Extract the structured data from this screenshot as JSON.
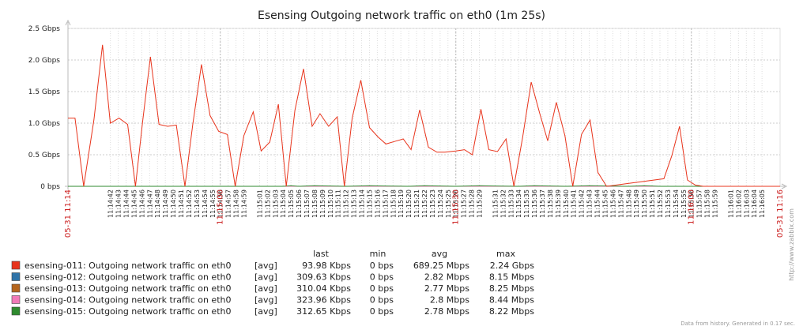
{
  "chart_data": {
    "type": "line",
    "title": "Esensing Outgoing network traffic on eth0 (1m 25s)",
    "ylim_gbps": [
      0,
      2.5
    ],
    "y_ticks": [
      "0 bps",
      "0.5 Gbps",
      "1.0 Gbps",
      "1.5 Gbps",
      "2.0 Gbps",
      "2.5 Gbps"
    ],
    "x_start_label": "05-31 11:14",
    "x_end_label": "05-31 11:16",
    "x_major": [
      {
        "index": 14,
        "label": "11:15:00"
      },
      {
        "index": 44,
        "label": "11:15:30"
      },
      {
        "index": 74,
        "label": "11:16:00"
      }
    ],
    "x_labels": [
      "11:14:42",
      "11:14:43",
      "11:14:44",
      "11:14:45",
      "11:14:46",
      "11:14:47",
      "11:14:48",
      "11:14:49",
      "11:14:50",
      "11:14:51",
      "11:14:52",
      "11:14:53",
      "11:14:54",
      "11:14:55",
      "11:14:56",
      "11:14:57",
      "11:14:58",
      "11:14:59",
      "11:15:01",
      "11:15:02",
      "11:15:03",
      "11:15:04",
      "11:15:05",
      "11:15:06",
      "11:15:07",
      "11:15:08",
      "11:15:09",
      "11:15:10",
      "11:15:11",
      "11:15:12",
      "11:15:13",
      "11:15:14",
      "11:15:15",
      "11:15:16",
      "11:15:17",
      "11:15:18",
      "11:15:19",
      "11:15:20",
      "11:15:21",
      "11:15:22",
      "11:15:23",
      "11:15:24",
      "11:15:25",
      "11:15:26",
      "11:15:27",
      "11:15:28",
      "11:15:29",
      "11:15:31",
      "11:15:32",
      "11:15:33",
      "11:15:34",
      "11:15:35",
      "11:15:36",
      "11:15:37",
      "11:15:38",
      "11:15:39",
      "11:15:40",
      "11:15:41",
      "11:15:42",
      "11:15:43",
      "11:15:44",
      "11:15:45",
      "11:15:46",
      "11:15:47",
      "11:15:48",
      "11:15:49",
      "11:15:50",
      "11:15:51",
      "11:15:52",
      "11:15:53",
      "11:15:54",
      "11:15:55",
      "11:15:56",
      "11:15:57",
      "11:15:58",
      "11:15:59",
      "11:16:01",
      "11:16:02",
      "11:16:03",
      "11:16:04",
      "11:16:05"
    ],
    "x_label_positions": [
      0,
      1,
      2,
      3,
      4,
      5,
      6,
      7,
      8,
      9,
      10,
      11,
      12,
      13,
      14,
      15,
      16,
      17,
      19,
      20,
      21,
      22,
      23,
      24,
      25,
      26,
      27,
      28,
      29,
      30,
      31,
      32,
      33,
      34,
      35,
      36,
      37,
      38,
      39,
      40,
      41,
      42,
      43,
      44,
      45,
      46,
      47,
      49,
      50,
      51,
      52,
      53,
      54,
      55,
      56,
      57,
      58,
      59,
      60,
      61,
      62,
      63,
      64,
      65,
      66,
      67,
      68,
      69,
      70,
      71,
      72,
      73,
      74,
      75,
      76,
      77,
      79,
      80,
      81,
      82,
      83
    ],
    "x_index_range": [
      -5.4,
      85.3
    ],
    "series": [
      {
        "name": "esensing-011: Outgoing network traffic on eth0",
        "color": "#e8341c",
        "points": [
          [
            -5.4,
            1.08
          ],
          [
            -4.5,
            1.08
          ],
          [
            -3.4,
            0.0
          ],
          [
            -2.1,
            1.05
          ],
          [
            -1.0,
            2.24
          ],
          [
            0.0,
            1.0
          ],
          [
            1.1,
            1.08
          ],
          [
            2.2,
            0.98
          ],
          [
            3.2,
            0.0
          ],
          [
            4.1,
            1.02
          ],
          [
            5.1,
            2.05
          ],
          [
            6.2,
            0.98
          ],
          [
            7.3,
            0.95
          ],
          [
            8.4,
            0.97
          ],
          [
            9.5,
            0.0
          ],
          [
            10.5,
            0.98
          ],
          [
            11.6,
            1.93
          ],
          [
            12.7,
            1.12
          ],
          [
            13.8,
            0.87
          ],
          [
            14.9,
            0.82
          ],
          [
            15.9,
            0.0
          ],
          [
            17.0,
            0.8
          ],
          [
            18.2,
            1.18
          ],
          [
            19.2,
            0.56
          ],
          [
            20.3,
            0.7
          ],
          [
            21.4,
            1.3
          ],
          [
            22.4,
            0.0
          ],
          [
            23.5,
            1.2
          ],
          [
            24.6,
            1.86
          ],
          [
            25.7,
            0.95
          ],
          [
            26.7,
            1.15
          ],
          [
            27.8,
            0.95
          ],
          [
            28.9,
            1.1
          ],
          [
            29.8,
            0.0
          ],
          [
            30.8,
            1.08
          ],
          [
            31.9,
            1.68
          ],
          [
            33.0,
            0.93
          ],
          [
            34.1,
            0.78
          ],
          [
            35.1,
            0.67
          ],
          [
            36.2,
            0.71
          ],
          [
            37.3,
            0.75
          ],
          [
            38.3,
            0.58
          ],
          [
            39.4,
            1.21
          ],
          [
            40.5,
            0.62
          ],
          [
            41.6,
            0.54
          ],
          [
            42.6,
            0.54
          ],
          [
            44.0,
            0.56
          ],
          [
            45.1,
            0.58
          ],
          [
            46.1,
            0.5
          ],
          [
            47.2,
            1.22
          ],
          [
            48.2,
            0.58
          ],
          [
            49.3,
            0.55
          ],
          [
            50.4,
            0.75
          ],
          [
            51.4,
            0.0
          ],
          [
            52.5,
            0.77
          ],
          [
            53.6,
            1.65
          ],
          [
            54.7,
            1.15
          ],
          [
            55.7,
            0.72
          ],
          [
            56.8,
            1.33
          ],
          [
            57.9,
            0.8
          ],
          [
            58.9,
            0.0
          ],
          [
            60.0,
            0.82
          ],
          [
            61.1,
            1.05
          ],
          [
            62.1,
            0.22
          ],
          [
            63.2,
            0.0
          ],
          [
            70.5,
            0.12
          ],
          [
            71.5,
            0.48
          ],
          [
            72.5,
            0.95
          ],
          [
            73.5,
            0.1
          ],
          [
            74.5,
            0.02
          ],
          [
            75.5,
            0.0
          ],
          [
            85.3,
            0.0
          ]
        ]
      },
      {
        "name": "esensing-012: Outgoing network traffic on eth0",
        "color": "#2f73a8",
        "points": [
          [
            -5.4,
            0.0
          ],
          [
            85.3,
            0.0
          ]
        ]
      },
      {
        "name": "esensing-013: Outgoing network traffic on eth0",
        "color": "#b5651d",
        "points": [
          [
            -5.4,
            0.0
          ],
          [
            85.3,
            0.0
          ]
        ]
      },
      {
        "name": "esensing-014: Outgoing network traffic on eth0",
        "color": "#f07ab8",
        "points": [
          [
            -5.4,
            0.0
          ],
          [
            85.3,
            0.0
          ]
        ]
      },
      {
        "name": "esensing-015: Outgoing network traffic on eth0",
        "color": "#2e8a2e",
        "points": [
          [
            -5.4,
            0.0
          ],
          [
            22.0,
            0.0
          ],
          [
            23.0,
            0.01
          ],
          [
            24.0,
            0.0
          ],
          [
            26.0,
            0.01
          ],
          [
            28.0,
            0.005
          ],
          [
            30.0,
            0.0
          ],
          [
            33.0,
            0.01
          ],
          [
            35.0,
            0.005
          ],
          [
            38.0,
            0.0
          ],
          [
            40.0,
            0.01
          ],
          [
            42.0,
            0.005
          ],
          [
            44.0,
            0.0
          ],
          [
            47.0,
            0.01
          ],
          [
            49.0,
            0.005
          ],
          [
            52.0,
            0.0
          ],
          [
            54.0,
            0.01
          ],
          [
            56.0,
            0.005
          ],
          [
            58.0,
            0.0
          ],
          [
            61.0,
            0.01
          ],
          [
            63.0,
            0.005
          ],
          [
            66.0,
            0.0
          ],
          [
            68.0,
            0.01
          ],
          [
            70.0,
            0.0
          ],
          [
            85.3,
            0.0
          ]
        ]
      }
    ],
    "legend": {
      "headers": {
        "last": "last",
        "min": "min",
        "avg": "avg",
        "max": "max"
      },
      "rows": [
        {
          "name": "esensing-011: Outgoing network traffic on eth0",
          "fn": "[avg]",
          "last": "93.98 Kbps",
          "min": "0 bps",
          "avg": "689.25 Mbps",
          "max": "2.24 Gbps",
          "color": "#e8341c"
        },
        {
          "name": "esensing-012: Outgoing network traffic on eth0",
          "fn": "[avg]",
          "last": "309.63 Kbps",
          "min": "0 bps",
          "avg": "2.82 Mbps",
          "max": "8.15 Mbps",
          "color": "#2f73a8"
        },
        {
          "name": "esensing-013: Outgoing network traffic on eth0",
          "fn": "[avg]",
          "last": "310.04 Kbps",
          "min": "0 bps",
          "avg": "2.77 Mbps",
          "max": "8.25 Mbps",
          "color": "#b5651d"
        },
        {
          "name": "esensing-014: Outgoing network traffic on eth0",
          "fn": "[avg]",
          "last": "323.96 Kbps",
          "min": "0 bps",
          "avg": "2.8 Mbps",
          "max": "8.44 Mbps",
          "color": "#f07ab8"
        },
        {
          "name": "esensing-015: Outgoing network traffic on eth0",
          "fn": "[avg]",
          "last": "312.65 Kbps",
          "min": "0 bps",
          "avg": "2.78 Mbps",
          "max": "8.22 Mbps",
          "color": "#2e8a2e"
        }
      ]
    },
    "watermark": "http://www.zabbix.com",
    "footer": "Data from history. Generated in 0.17 sec."
  }
}
